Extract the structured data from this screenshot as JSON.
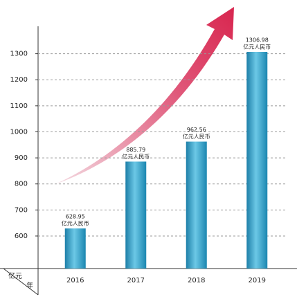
{
  "chart_data": {
    "type": "bar",
    "y_label": "亿元",
    "x_label": "年",
    "categories": [
      "2016",
      "2017",
      "2018",
      "2019"
    ],
    "values": [
      628.95,
      885.79,
      962.56,
      1306.98
    ],
    "value_unit": "亿元人民币",
    "color": "#2a9cc4",
    "ylim": [
      475,
      1400
    ],
    "yticks": [
      600,
      700,
      800,
      900,
      1000,
      1100,
      1200,
      1300
    ],
    "grid": true
  }
}
